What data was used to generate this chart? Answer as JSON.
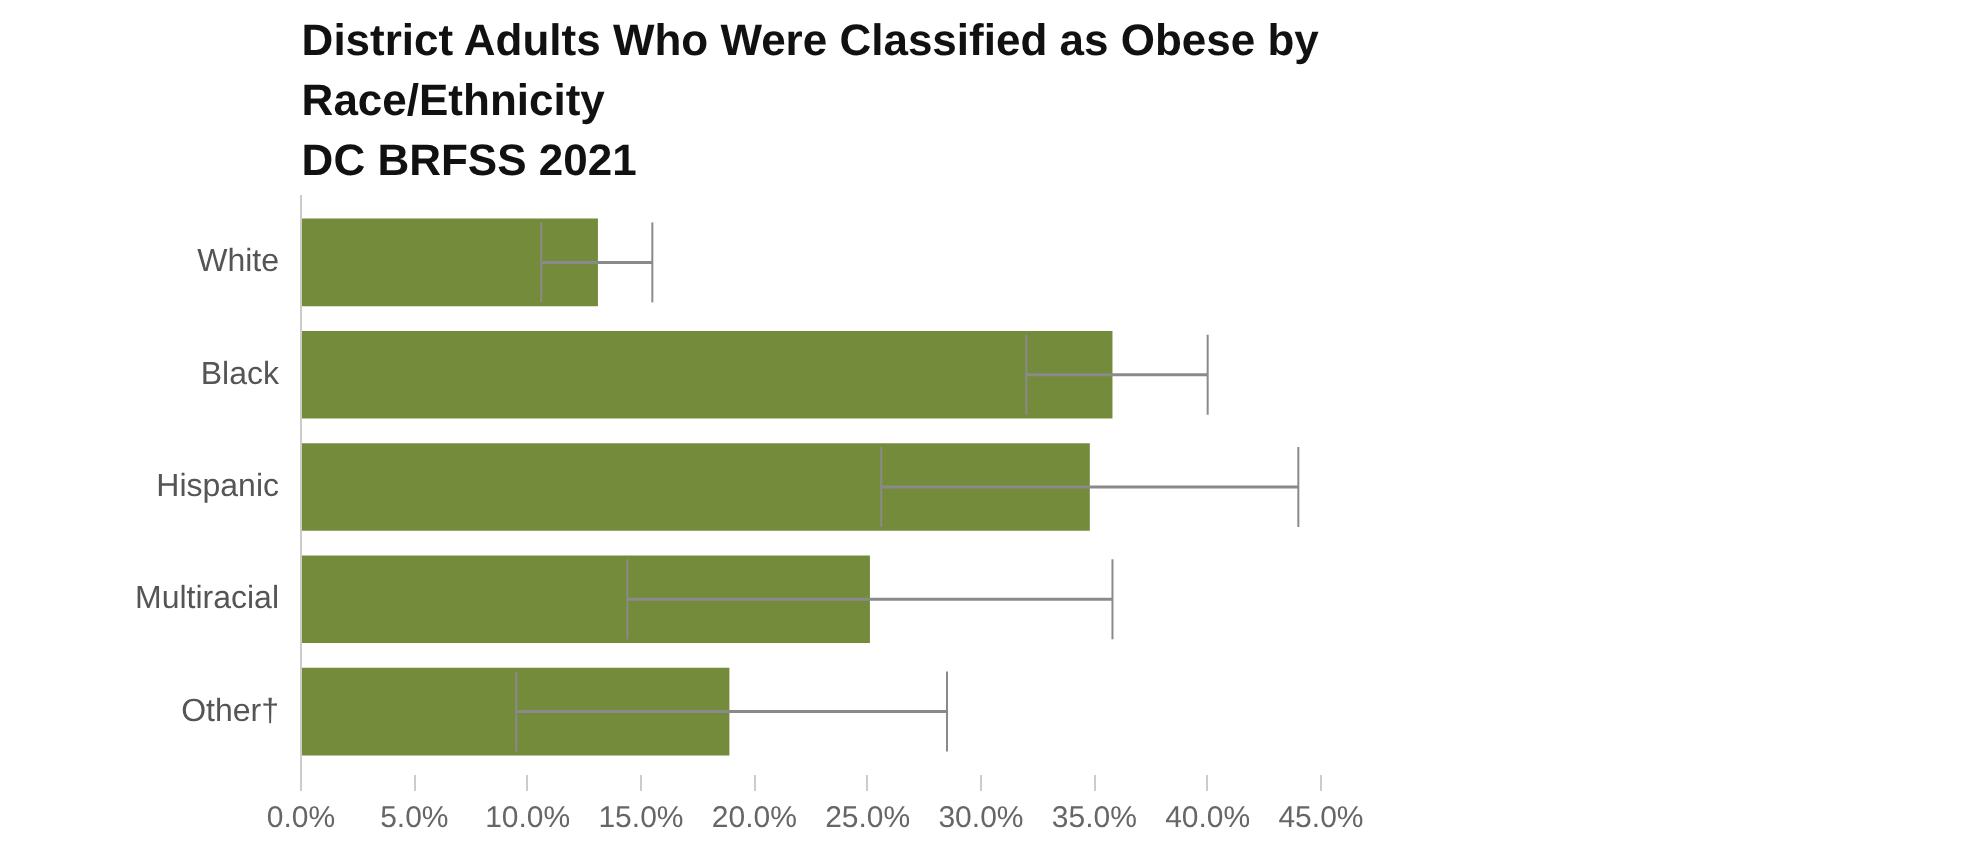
{
  "chart_data": {
    "type": "bar",
    "orientation": "horizontal",
    "title": "District Adults Who Were Classified as Obese by\nRace/Ethnicity\nDC BRFSS 2021",
    "categories": [
      "White",
      "Black",
      "Hispanic",
      "Multiracial",
      "Other†"
    ],
    "values": [
      13.1,
      35.8,
      34.8,
      25.1,
      18.9
    ],
    "errors": [
      [
        10.6,
        15.5
      ],
      [
        32.0,
        40.0
      ],
      [
        25.6,
        44.0
      ],
      [
        14.4,
        35.8
      ],
      [
        9.5,
        28.5
      ]
    ],
    "color": "#748b3c",
    "xlim": [
      0,
      45
    ],
    "xticks": [
      {
        "value": 0,
        "label": "0.0%"
      },
      {
        "value": 5,
        "label": "5.0%"
      },
      {
        "value": 10,
        "label": "10.0%"
      },
      {
        "value": 15,
        "label": "15.0%"
      },
      {
        "value": 20,
        "label": "20.0%"
      },
      {
        "value": 25,
        "label": "25.0%"
      },
      {
        "value": 30,
        "label": "30.0%"
      },
      {
        "value": 35,
        "label": "35.0%"
      },
      {
        "value": 40,
        "label": "40.0%"
      },
      {
        "value": 45,
        "label": "45.0%"
      }
    ],
    "grid": false
  }
}
